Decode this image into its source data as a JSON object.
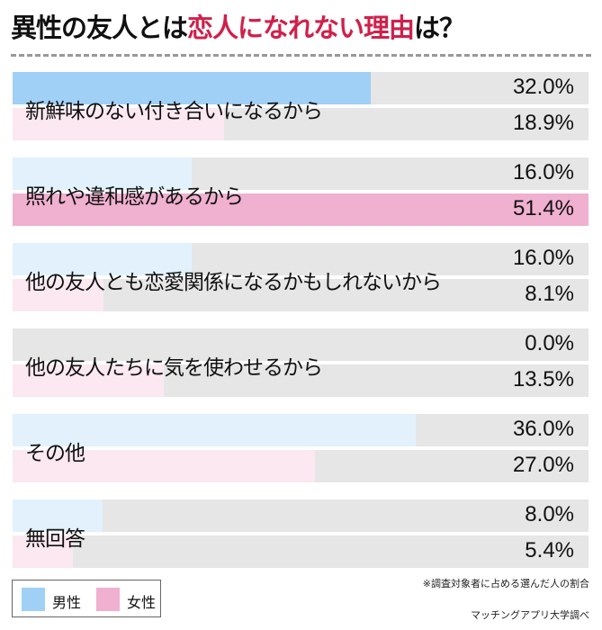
{
  "title": {
    "part1": "異性の友人とは",
    "part2": "恋人になれない理由",
    "part3": "は？"
  },
  "colors": {
    "male_strong": "#a0d0f5",
    "male_light": "#e2f1fc",
    "female_strong": "#f0b0d0",
    "female_light": "#fbe8f1",
    "track": "#e6e6e6",
    "title_accent": "#d0204a"
  },
  "chart_data": {
    "type": "bar",
    "orientation": "horizontal",
    "categories": [
      "新鮮味のない付き合いになるから",
      "照れや違和感があるから",
      "他の友人とも恋愛関係になるかもしれないから",
      "他の友人たちに気を使わせるから",
      "その他",
      "無回答"
    ],
    "series": [
      {
        "name": "男性",
        "values": [
          32.0,
          16.0,
          16.0,
          0.0,
          36.0,
          8.0
        ],
        "labels": [
          "32.0%",
          "16.0%",
          "16.0%",
          "0.0%",
          "36.0%",
          "8.0%"
        ],
        "highlight": [
          true,
          false,
          false,
          false,
          false,
          false
        ]
      },
      {
        "name": "女性",
        "values": [
          18.9,
          51.4,
          8.1,
          13.5,
          27.0,
          5.4
        ],
        "labels": [
          "18.9%",
          "51.4%",
          "8.1%",
          "13.5%",
          "27.0%",
          "5.4%"
        ],
        "highlight": [
          false,
          true,
          false,
          false,
          false,
          false
        ]
      }
    ],
    "xlim": [
      0,
      51.4
    ],
    "legend": "bottom-left"
  },
  "legend": {
    "male": "男性",
    "female": "女性"
  },
  "note": "※調査対象者に占める選んだ人の割合",
  "source": "マッチングアプリ大学調べ"
}
